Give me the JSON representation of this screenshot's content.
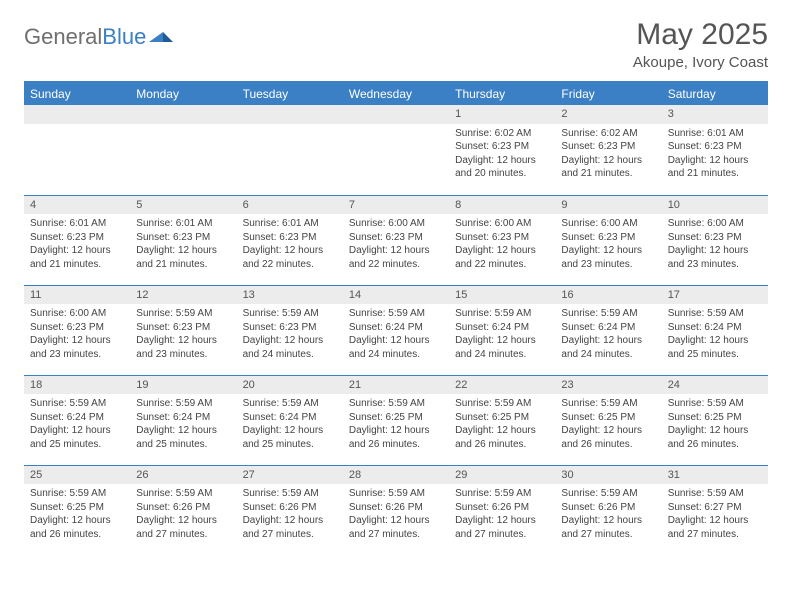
{
  "logo": {
    "word1": "General",
    "word2": "Blue"
  },
  "title": "May 2025",
  "subtitle": "Akoupe, Ivory Coast",
  "colors": {
    "header_bg": "#3b7fc4",
    "header_text": "#ffffff",
    "daynum_bg": "#ececec",
    "text": "#444444",
    "logo_gray": "#6f6f6f"
  },
  "dayHeaders": [
    "Sunday",
    "Monday",
    "Tuesday",
    "Wednesday",
    "Thursday",
    "Friday",
    "Saturday"
  ],
  "weeks": [
    [
      null,
      null,
      null,
      null,
      {
        "n": "1",
        "sr": "6:02 AM",
        "ss": "6:23 PM",
        "dl": "12 hours and 20 minutes."
      },
      {
        "n": "2",
        "sr": "6:02 AM",
        "ss": "6:23 PM",
        "dl": "12 hours and 21 minutes."
      },
      {
        "n": "3",
        "sr": "6:01 AM",
        "ss": "6:23 PM",
        "dl": "12 hours and 21 minutes."
      }
    ],
    [
      {
        "n": "4",
        "sr": "6:01 AM",
        "ss": "6:23 PM",
        "dl": "12 hours and 21 minutes."
      },
      {
        "n": "5",
        "sr": "6:01 AM",
        "ss": "6:23 PM",
        "dl": "12 hours and 21 minutes."
      },
      {
        "n": "6",
        "sr": "6:01 AM",
        "ss": "6:23 PM",
        "dl": "12 hours and 22 minutes."
      },
      {
        "n": "7",
        "sr": "6:00 AM",
        "ss": "6:23 PM",
        "dl": "12 hours and 22 minutes."
      },
      {
        "n": "8",
        "sr": "6:00 AM",
        "ss": "6:23 PM",
        "dl": "12 hours and 22 minutes."
      },
      {
        "n": "9",
        "sr": "6:00 AM",
        "ss": "6:23 PM",
        "dl": "12 hours and 23 minutes."
      },
      {
        "n": "10",
        "sr": "6:00 AM",
        "ss": "6:23 PM",
        "dl": "12 hours and 23 minutes."
      }
    ],
    [
      {
        "n": "11",
        "sr": "6:00 AM",
        "ss": "6:23 PM",
        "dl": "12 hours and 23 minutes."
      },
      {
        "n": "12",
        "sr": "5:59 AM",
        "ss": "6:23 PM",
        "dl": "12 hours and 23 minutes."
      },
      {
        "n": "13",
        "sr": "5:59 AM",
        "ss": "6:23 PM",
        "dl": "12 hours and 24 minutes."
      },
      {
        "n": "14",
        "sr": "5:59 AM",
        "ss": "6:24 PM",
        "dl": "12 hours and 24 minutes."
      },
      {
        "n": "15",
        "sr": "5:59 AM",
        "ss": "6:24 PM",
        "dl": "12 hours and 24 minutes."
      },
      {
        "n": "16",
        "sr": "5:59 AM",
        "ss": "6:24 PM",
        "dl": "12 hours and 24 minutes."
      },
      {
        "n": "17",
        "sr": "5:59 AM",
        "ss": "6:24 PM",
        "dl": "12 hours and 25 minutes."
      }
    ],
    [
      {
        "n": "18",
        "sr": "5:59 AM",
        "ss": "6:24 PM",
        "dl": "12 hours and 25 minutes."
      },
      {
        "n": "19",
        "sr": "5:59 AM",
        "ss": "6:24 PM",
        "dl": "12 hours and 25 minutes."
      },
      {
        "n": "20",
        "sr": "5:59 AM",
        "ss": "6:24 PM",
        "dl": "12 hours and 25 minutes."
      },
      {
        "n": "21",
        "sr": "5:59 AM",
        "ss": "6:25 PM",
        "dl": "12 hours and 26 minutes."
      },
      {
        "n": "22",
        "sr": "5:59 AM",
        "ss": "6:25 PM",
        "dl": "12 hours and 26 minutes."
      },
      {
        "n": "23",
        "sr": "5:59 AM",
        "ss": "6:25 PM",
        "dl": "12 hours and 26 minutes."
      },
      {
        "n": "24",
        "sr": "5:59 AM",
        "ss": "6:25 PM",
        "dl": "12 hours and 26 minutes."
      }
    ],
    [
      {
        "n": "25",
        "sr": "5:59 AM",
        "ss": "6:25 PM",
        "dl": "12 hours and 26 minutes."
      },
      {
        "n": "26",
        "sr": "5:59 AM",
        "ss": "6:26 PM",
        "dl": "12 hours and 27 minutes."
      },
      {
        "n": "27",
        "sr": "5:59 AM",
        "ss": "6:26 PM",
        "dl": "12 hours and 27 minutes."
      },
      {
        "n": "28",
        "sr": "5:59 AM",
        "ss": "6:26 PM",
        "dl": "12 hours and 27 minutes."
      },
      {
        "n": "29",
        "sr": "5:59 AM",
        "ss": "6:26 PM",
        "dl": "12 hours and 27 minutes."
      },
      {
        "n": "30",
        "sr": "5:59 AM",
        "ss": "6:26 PM",
        "dl": "12 hours and 27 minutes."
      },
      {
        "n": "31",
        "sr": "5:59 AM",
        "ss": "6:27 PM",
        "dl": "12 hours and 27 minutes."
      }
    ]
  ],
  "labels": {
    "sunrise": "Sunrise: ",
    "sunset": "Sunset: ",
    "daylight": "Daylight: "
  }
}
